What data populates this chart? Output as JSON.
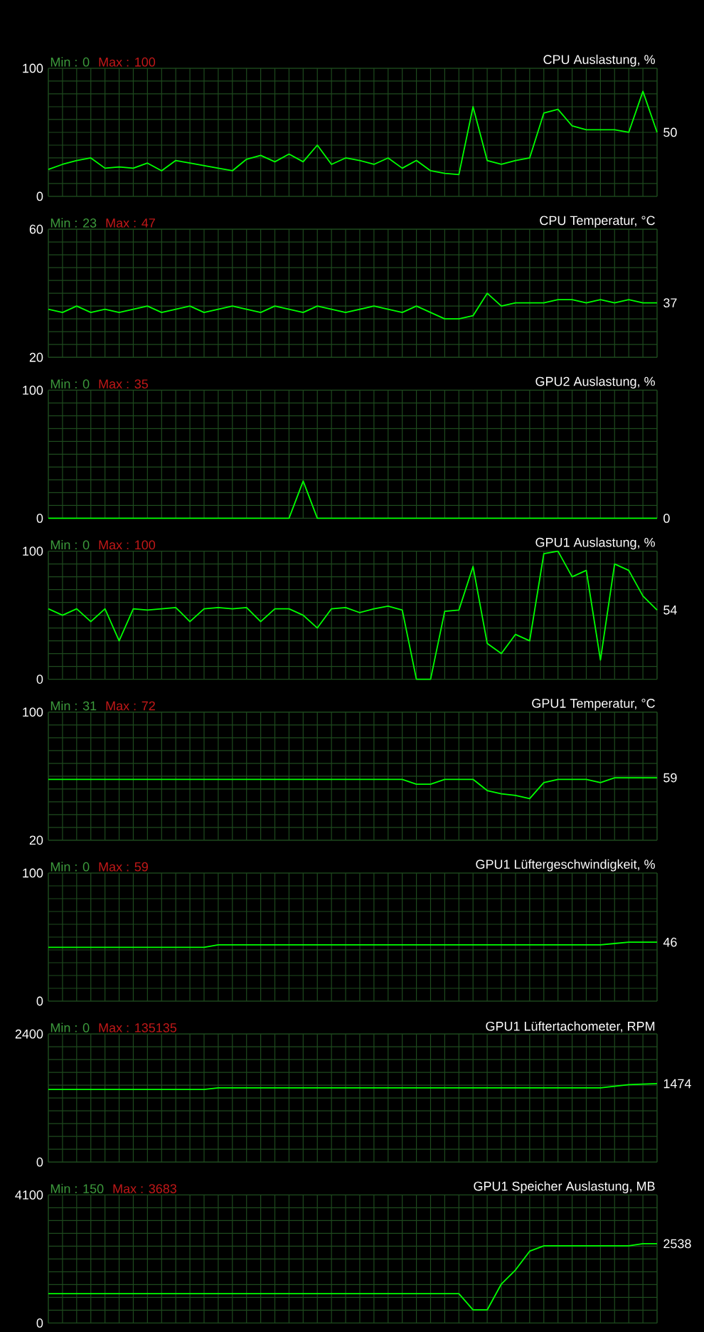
{
  "chart_data": [
    {
      "type": "line",
      "title": "CPU Auslastung, %",
      "annotations": [
        "Min : 0",
        "Max : 100",
        "50"
      ],
      "categories": [
        null,
        null,
        null,
        null,
        null,
        null,
        null,
        null,
        null,
        null,
        null,
        null,
        null,
        null,
        null,
        null,
        null,
        null,
        null,
        null,
        null,
        null,
        null,
        null,
        null,
        null,
        null,
        null,
        null,
        null,
        null,
        null,
        null,
        null,
        null,
        null,
        null,
        null,
        null,
        null,
        null,
        null,
        null,
        null
      ],
      "color": "#00ff00",
      "values": [
        21,
        25,
        28,
        30,
        22,
        23,
        22,
        26,
        20,
        28,
        26,
        24,
        22,
        20,
        29,
        32,
        27,
        33,
        27,
        40,
        25,
        30,
        28,
        25,
        30,
        22,
        28,
        20,
        18,
        17,
        70,
        28,
        25,
        28,
        30,
        65,
        68,
        55,
        52,
        52,
        52,
        50,
        82,
        50
      ],
      "ylim": [
        0,
        100
      ],
      "yticks": [
        0,
        {
          "value": 10,
          "label": null
        },
        {
          "value": 20,
          "label": null
        },
        {
          "value": 30,
          "label": null
        },
        {
          "value": 40,
          "label": null
        },
        {
          "value": 50,
          "label": null
        },
        {
          "value": 60,
          "label": null
        },
        {
          "value": 70,
          "label": null
        },
        {
          "value": 80,
          "label": null
        },
        {
          "value": 90,
          "label": null
        },
        100
      ],
      "grid": true,
      "tick_labels": "y"
    },
    {
      "type": "line",
      "title": "CPU Temperatur, °C",
      "annotations": [
        "Min : 23",
        "Max : 47",
        "37"
      ],
      "categories": [
        null,
        null,
        null,
        null,
        null,
        null,
        null,
        null,
        null,
        null,
        null,
        null,
        null,
        null,
        null,
        null,
        null,
        null,
        null,
        null,
        null,
        null,
        null,
        null,
        null,
        null,
        null,
        null,
        null,
        null,
        null,
        null,
        null,
        null,
        null,
        null,
        null,
        null,
        null,
        null,
        null,
        null,
        null,
        null
      ],
      "color": "#00ff00",
      "values": [
        35,
        34,
        36,
        34,
        35,
        34,
        35,
        36,
        34,
        35,
        36,
        34,
        35,
        36,
        35,
        34,
        36,
        35,
        34,
        36,
        35,
        34,
        35,
        36,
        35,
        34,
        36,
        34,
        32,
        32,
        33,
        40,
        36,
        37,
        37,
        37,
        38,
        38,
        37,
        38,
        37,
        38,
        37,
        37
      ],
      "ylim": [
        20,
        60
      ],
      "yticks": [
        20,
        {
          "value": 24,
          "label": null
        },
        {
          "value": 28,
          "label": null
        },
        {
          "value": 32,
          "label": null
        },
        {
          "value": 36,
          "label": null
        },
        {
          "value": 40,
          "label": null
        },
        {
          "value": 44,
          "label": null
        },
        {
          "value": 48,
          "label": null
        },
        {
          "value": 52,
          "label": null
        },
        {
          "value": 56,
          "label": null
        },
        60
      ],
      "grid": true,
      "tick_labels": "y"
    },
    {
      "type": "line",
      "title": "GPU2 Auslastung, %",
      "annotations": [
        "Min : 0",
        "Max : 35",
        "0"
      ],
      "categories": [
        null,
        null,
        null,
        null,
        null,
        null,
        null,
        null,
        null,
        null,
        null,
        null,
        null,
        null,
        null,
        null,
        null,
        null,
        null,
        null,
        null,
        null,
        null,
        null,
        null,
        null,
        null,
        null,
        null,
        null,
        null,
        null,
        null,
        null,
        null,
        null,
        null,
        null,
        null,
        null,
        null,
        null,
        null,
        null
      ],
      "color": "#00ff00",
      "values": [
        0,
        0,
        0,
        0,
        0,
        0,
        0,
        0,
        0,
        0,
        0,
        0,
        0,
        0,
        0,
        0,
        0,
        0,
        29,
        0,
        0,
        0,
        0,
        0,
        0,
        0,
        0,
        0,
        0,
        0,
        0,
        0,
        0,
        0,
        0,
        0,
        0,
        0,
        0,
        0,
        0,
        0,
        0,
        0
      ],
      "ylim": [
        0,
        100
      ],
      "yticks": [
        0,
        {
          "value": 10,
          "label": null
        },
        {
          "value": 20,
          "label": null
        },
        {
          "value": 30,
          "label": null
        },
        {
          "value": 40,
          "label": null
        },
        {
          "value": 50,
          "label": null
        },
        {
          "value": 60,
          "label": null
        },
        {
          "value": 70,
          "label": null
        },
        {
          "value": 80,
          "label": null
        },
        {
          "value": 90,
          "label": null
        },
        100
      ],
      "grid": true,
      "tick_labels": "y"
    },
    {
      "type": "line",
      "title": "GPU1 Auslastung, %",
      "annotations": [
        "Min : 0",
        "Max : 100",
        "54"
      ],
      "categories": [
        null,
        null,
        null,
        null,
        null,
        null,
        null,
        null,
        null,
        null,
        null,
        null,
        null,
        null,
        null,
        null,
        null,
        null,
        null,
        null,
        null,
        null,
        null,
        null,
        null,
        null,
        null,
        null,
        null,
        null,
        null,
        null,
        null,
        null,
        null,
        null,
        null,
        null,
        null,
        null,
        null,
        null,
        null,
        null
      ],
      "color": "#00ff00",
      "values": [
        55,
        50,
        55,
        45,
        55,
        30,
        55,
        54,
        55,
        56,
        45,
        55,
        56,
        55,
        56,
        45,
        55,
        55,
        50,
        40,
        55,
        56,
        52,
        55,
        57,
        54,
        0,
        0,
        53,
        54,
        88,
        28,
        20,
        35,
        30,
        98,
        100,
        80,
        85,
        15,
        90,
        85,
        65,
        54
      ],
      "ylim": [
        0,
        100
      ],
      "yticks": [
        0,
        {
          "value": 10,
          "label": null
        },
        {
          "value": 20,
          "label": null
        },
        {
          "value": 30,
          "label": null
        },
        {
          "value": 40,
          "label": null
        },
        {
          "value": 50,
          "label": null
        },
        {
          "value": 60,
          "label": null
        },
        {
          "value": 70,
          "label": null
        },
        {
          "value": 80,
          "label": null
        },
        {
          "value": 90,
          "label": null
        },
        100
      ],
      "grid": true,
      "tick_labels": "y"
    },
    {
      "type": "line",
      "title": "GPU1 Temperatur, °C",
      "annotations": [
        "Min : 31",
        "Max : 72",
        "59"
      ],
      "categories": [
        null,
        null,
        null,
        null,
        null,
        null,
        null,
        null,
        null,
        null,
        null,
        null,
        null,
        null,
        null,
        null,
        null,
        null,
        null,
        null,
        null,
        null,
        null,
        null,
        null,
        null,
        null,
        null,
        null,
        null,
        null,
        null,
        null,
        null,
        null,
        null,
        null,
        null,
        null,
        null,
        null,
        null,
        null,
        null
      ],
      "color": "#00ff00",
      "values": [
        58,
        58,
        58,
        58,
        58,
        58,
        58,
        58,
        58,
        58,
        58,
        58,
        58,
        58,
        58,
        58,
        58,
        58,
        58,
        58,
        58,
        58,
        58,
        58,
        58,
        58,
        55,
        55,
        58,
        58,
        58,
        51,
        49,
        48,
        46,
        56,
        58,
        58,
        58,
        56,
        59,
        59,
        59,
        59
      ],
      "ylim": [
        20,
        100
      ],
      "yticks": [
        20,
        {
          "value": 28,
          "label": null
        },
        {
          "value": 36,
          "label": null
        },
        {
          "value": 44,
          "label": null
        },
        {
          "value": 52,
          "label": null
        },
        {
          "value": 60,
          "label": null
        },
        {
          "value": 68,
          "label": null
        },
        {
          "value": 76,
          "label": null
        },
        {
          "value": 84,
          "label": null
        },
        {
          "value": 92,
          "label": null
        },
        100
      ],
      "grid": true,
      "tick_labels": "y"
    },
    {
      "type": "line",
      "title": "GPU1 Lüftergeschwindigkeit, %",
      "annotations": [
        "Min : 0",
        "Max : 59",
        "46"
      ],
      "categories": [
        null,
        null,
        null,
        null,
        null,
        null,
        null,
        null,
        null,
        null,
        null,
        null,
        null,
        null,
        null,
        null,
        null,
        null,
        null,
        null,
        null,
        null,
        null,
        null,
        null,
        null,
        null,
        null,
        null,
        null,
        null,
        null,
        null,
        null,
        null,
        null,
        null,
        null,
        null,
        null,
        null,
        null,
        null,
        null
      ],
      "color": "#00ff00",
      "values": [
        42,
        42,
        42,
        42,
        42,
        42,
        42,
        42,
        42,
        42,
        42,
        42,
        44,
        44,
        44,
        44,
        44,
        44,
        44,
        44,
        44,
        44,
        44,
        44,
        44,
        44,
        44,
        44,
        44,
        44,
        44,
        44,
        44,
        44,
        44,
        44,
        44,
        44,
        44,
        44,
        45,
        46,
        46,
        46
      ],
      "ylim": [
        0,
        100
      ],
      "yticks": [
        0,
        {
          "value": 10,
          "label": null
        },
        {
          "value": 20,
          "label": null
        },
        {
          "value": 30,
          "label": null
        },
        {
          "value": 40,
          "label": null
        },
        {
          "value": 50,
          "label": null
        },
        {
          "value": 60,
          "label": null
        },
        {
          "value": 70,
          "label": null
        },
        {
          "value": 80,
          "label": null
        },
        {
          "value": 90,
          "label": null
        },
        100
      ],
      "grid": true,
      "tick_labels": "y"
    },
    {
      "type": "line",
      "title": "GPU1 Lüftertachometer, RPM",
      "annotations": [
        "Min : 0",
        "Max : 135135",
        "1474"
      ],
      "categories": [
        null,
        null,
        null,
        null,
        null,
        null,
        null,
        null,
        null,
        null,
        null,
        null,
        null,
        null,
        null,
        null,
        null,
        null,
        null,
        null,
        null,
        null,
        null,
        null,
        null,
        null,
        null,
        null,
        null,
        null,
        null,
        null,
        null,
        null,
        null,
        null,
        null,
        null,
        null,
        null,
        null,
        null,
        null,
        null
      ],
      "color": "#00ff00",
      "values": [
        1360,
        1360,
        1360,
        1360,
        1360,
        1360,
        1360,
        1360,
        1360,
        1360,
        1360,
        1360,
        1390,
        1390,
        1390,
        1390,
        1390,
        1390,
        1390,
        1390,
        1390,
        1390,
        1390,
        1390,
        1390,
        1390,
        1390,
        1390,
        1390,
        1390,
        1390,
        1390,
        1390,
        1390,
        1390,
        1390,
        1390,
        1390,
        1390,
        1390,
        1420,
        1450,
        1460,
        1470
      ],
      "ylim": [
        0,
        2400
      ],
      "yticks": [
        0,
        {
          "value": 240,
          "label": null
        },
        {
          "value": 480,
          "label": null
        },
        {
          "value": 720,
          "label": null
        },
        {
          "value": 960,
          "label": null
        },
        {
          "value": 1200,
          "label": null
        },
        {
          "value": 1440,
          "label": null
        },
        {
          "value": 1680,
          "label": null
        },
        {
          "value": 1920,
          "label": null
        },
        {
          "value": 2160,
          "label": null
        },
        2400
      ],
      "grid": true,
      "tick_labels": "y"
    },
    {
      "type": "line",
      "title": "GPU1 Speicher Auslastung, MB",
      "annotations": [
        "Min : 150",
        "Max : 3683",
        "2538"
      ],
      "categories": [
        null,
        null,
        null,
        null,
        null,
        null,
        null,
        null,
        null,
        null,
        null,
        null,
        null,
        null,
        null,
        null,
        null,
        null,
        null,
        null,
        null,
        null,
        null,
        null,
        null,
        null,
        null,
        null,
        null,
        null,
        null,
        null,
        null,
        null,
        null,
        null,
        null,
        null,
        null,
        null,
        null,
        null,
        null,
        null
      ],
      "color": "#00ff00",
      "values": [
        940,
        940,
        940,
        940,
        940,
        940,
        940,
        940,
        940,
        940,
        940,
        940,
        940,
        940,
        940,
        940,
        940,
        940,
        940,
        940,
        940,
        940,
        940,
        940,
        940,
        940,
        940,
        940,
        940,
        940,
        420,
        420,
        1250,
        1700,
        2300,
        2470,
        2470,
        2470,
        2470,
        2470,
        2470,
        2470,
        2540,
        2540
      ],
      "ylim": [
        0,
        4100
      ],
      "yticks": [
        0,
        {
          "value": 410,
          "label": null
        },
        {
          "value": 820,
          "label": null
        },
        {
          "value": 1230,
          "label": null
        },
        {
          "value": 1640,
          "label": null
        },
        {
          "value": 2050,
          "label": null
        },
        {
          "value": 2460,
          "label": null
        },
        {
          "value": 2870,
          "label": null
        },
        {
          "value": 3280,
          "label": null
        },
        {
          "value": 3690,
          "label": null
        },
        4100
      ],
      "grid": true,
      "tick_labels": "y"
    }
  ]
}
